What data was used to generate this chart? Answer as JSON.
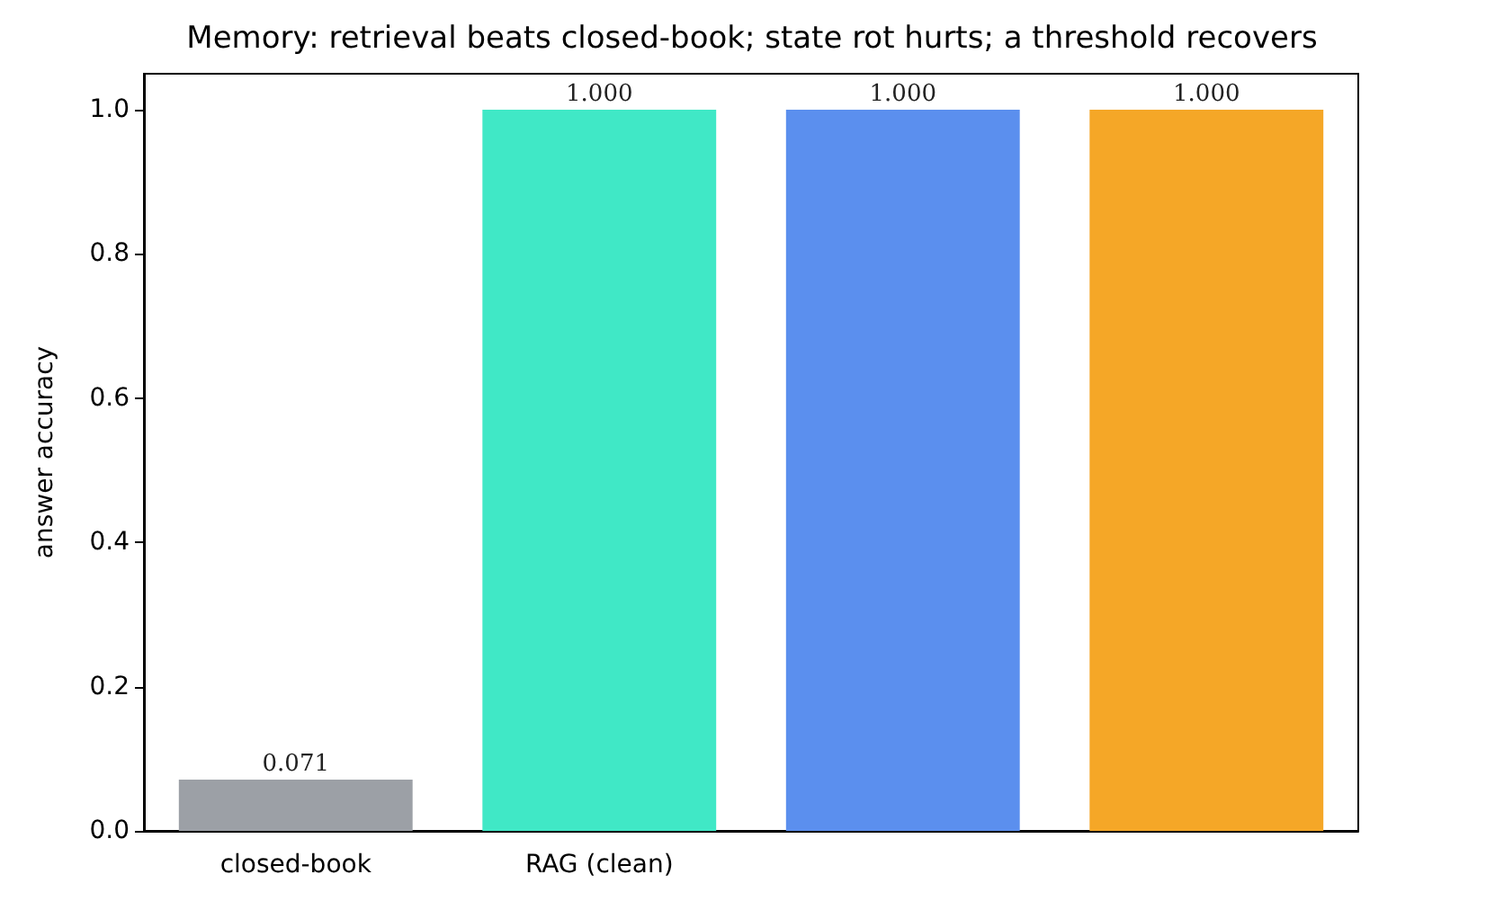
{
  "chart_data": {
    "type": "bar",
    "title": "Memory: retrieval beats closed-book; state rot hurts; a threshold recovers",
    "ylabel": "answer accuracy",
    "categories": [
      "closed-book",
      "RAG (clean)",
      null,
      null
    ],
    "values": [
      0.071,
      1.0,
      1.0,
      1.0
    ],
    "colors": [
      "#9ca0a6",
      "#40e8c6",
      "#5b8fee",
      "#f5a727"
    ],
    "value_labels": [
      "0.071",
      "1.000",
      "1.000",
      "1.000"
    ],
    "ylim": [
      0,
      1.05
    ],
    "yticks": [
      {
        "value": 0,
        "label": "0.0"
      },
      {
        "value": 0.2,
        "label": "0.2"
      },
      {
        "value": 0.4,
        "label": "0.4"
      },
      {
        "value": 0.6,
        "label": "0.6"
      },
      {
        "value": 0.8,
        "label": "0.8"
      },
      {
        "value": 1.0,
        "label": "1.0"
      }
    ],
    "grid": false
  }
}
